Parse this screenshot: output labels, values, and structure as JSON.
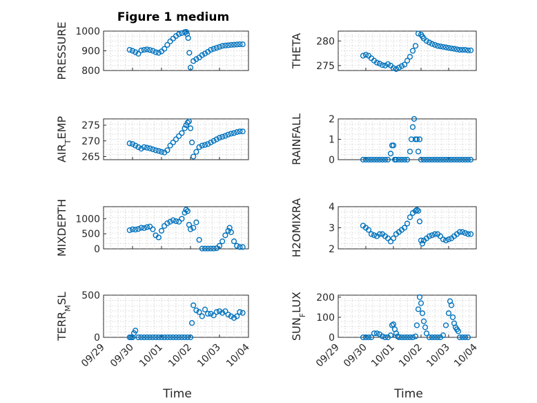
{
  "figure": {
    "title": "Figure 1 medium",
    "marker_color": "#0072bd",
    "grid": "minor-dotted"
  },
  "chart_data": [
    {
      "type": "scatter",
      "title": "Figure 1 medium",
      "ylabel": "PRESSURE",
      "ylim": [
        800,
        1000
      ],
      "yticks": [
        800,
        900,
        1000
      ],
      "yticklabels": [
        "800",
        "900",
        "1000"
      ],
      "xlim": [
        0,
        5
      ],
      "xticks": [
        0,
        1,
        2,
        3,
        4,
        5
      ],
      "xticklabels": [],
      "x": [
        0.9,
        1.0,
        1.1,
        1.2,
        1.3,
        1.4,
        1.5,
        1.6,
        1.7,
        1.8,
        1.9,
        2.0,
        2.1,
        2.2,
        2.3,
        2.4,
        2.5,
        2.6,
        2.7,
        2.8,
        2.85,
        2.88,
        2.92,
        2.96,
        3.0,
        3.1,
        3.2,
        3.3,
        3.4,
        3.5,
        3.6,
        3.7,
        3.8,
        3.9,
        4.0,
        4.1,
        4.2,
        4.3,
        4.4,
        4.5,
        4.6,
        4.7,
        4.8
      ],
      "y": [
        905,
        900,
        893,
        885,
        902,
        905,
        907,
        904,
        900,
        893,
        890,
        897,
        910,
        930,
        948,
        962,
        975,
        985,
        990,
        995,
        996,
        985,
        965,
        890,
        815,
        848,
        858,
        866,
        878,
        886,
        895,
        905,
        910,
        915,
        920,
        925,
        927,
        928,
        930,
        931,
        932,
        933,
        933
      ]
    },
    {
      "type": "scatter",
      "ylabel": "THETA",
      "ylim": [
        274,
        282
      ],
      "yticks": [
        275,
        280
      ],
      "yticklabels": [
        "275",
        "280"
      ],
      "xlim": [
        0,
        5
      ],
      "xticks": [
        0,
        1,
        2,
        3,
        4,
        5
      ],
      "xticklabels": [],
      "x": [
        0.9,
        1.0,
        1.1,
        1.2,
        1.3,
        1.4,
        1.5,
        1.6,
        1.7,
        1.8,
        1.9,
        2.0,
        2.1,
        2.2,
        2.3,
        2.4,
        2.5,
        2.6,
        2.7,
        2.8,
        2.9,
        3.0,
        3.05,
        3.1,
        3.2,
        3.3,
        3.4,
        3.5,
        3.6,
        3.7,
        3.8,
        3.9,
        4.0,
        4.1,
        4.2,
        4.3,
        4.4,
        4.5,
        4.6,
        4.7,
        4.8
      ],
      "y": [
        277.0,
        277.2,
        277.0,
        276.5,
        276.0,
        275.6,
        275.4,
        275.1,
        275.0,
        275.3,
        275.0,
        274.5,
        274.3,
        274.6,
        274.9,
        275.2,
        276.0,
        276.8,
        278.0,
        279.0,
        281.5,
        281.3,
        280.9,
        280.5,
        280.0,
        279.7,
        279.4,
        279.2,
        279.0,
        278.9,
        278.8,
        278.7,
        278.6,
        278.5,
        278.4,
        278.3,
        278.2,
        278.2,
        278.2,
        278.1,
        278.1
      ]
    },
    {
      "type": "scatter",
      "ylabel": "AIR_TEMP",
      "ylim": [
        264,
        277
      ],
      "yticks": [
        265,
        270,
        275
      ],
      "yticklabels": [
        "265",
        "270",
        "275"
      ],
      "xlim": [
        0,
        5
      ],
      "xticks": [
        0,
        1,
        2,
        3,
        4,
        5
      ],
      "xticklabels": [],
      "x": [
        0.9,
        1.0,
        1.1,
        1.2,
        1.3,
        1.4,
        1.5,
        1.6,
        1.7,
        1.8,
        1.9,
        2.0,
        2.1,
        2.2,
        2.3,
        2.4,
        2.5,
        2.6,
        2.7,
        2.8,
        2.85,
        2.9,
        2.95,
        3.0,
        3.05,
        3.1,
        3.2,
        3.3,
        3.4,
        3.5,
        3.6,
        3.7,
        3.8,
        3.9,
        4.0,
        4.1,
        4.2,
        4.3,
        4.4,
        4.5,
        4.6,
        4.7,
        4.8
      ],
      "y": [
        269.2,
        269.0,
        268.5,
        268.0,
        267.5,
        268.0,
        267.8,
        267.6,
        267.3,
        267.0,
        266.8,
        266.5,
        266.3,
        267.0,
        268.5,
        269.5,
        270.5,
        271.5,
        272.5,
        274.0,
        275.0,
        275.8,
        276.2,
        274.0,
        269.5,
        265.0,
        266.5,
        268.0,
        268.5,
        268.7,
        269.0,
        269.5,
        270.0,
        270.5,
        271.0,
        271.3,
        271.6,
        272.0,
        272.3,
        272.5,
        272.8,
        273.0,
        273.0
      ]
    },
    {
      "type": "scatter",
      "ylabel": "RAINFALL",
      "ylim": [
        0,
        2
      ],
      "yticks": [
        0,
        1,
        2
      ],
      "yticklabels": [
        "0",
        "1",
        "2"
      ],
      "xlim": [
        0,
        5
      ],
      "xticks": [
        0,
        1,
        2,
        3,
        4,
        5
      ],
      "xticklabels": [],
      "x": [
        0.9,
        1.0,
        1.1,
        1.2,
        1.3,
        1.4,
        1.5,
        1.6,
        1.7,
        1.8,
        1.9,
        1.95,
        2.0,
        2.05,
        2.1,
        2.2,
        2.3,
        2.4,
        2.5,
        2.6,
        2.65,
        2.7,
        2.75,
        2.8,
        2.85,
        2.9,
        2.95,
        3.0,
        3.1,
        3.2,
        3.3,
        3.4,
        3.5,
        3.6,
        3.7,
        3.8,
        3.9,
        4.0,
        4.1,
        4.2,
        4.3,
        4.4,
        4.5,
        4.6,
        4.7,
        4.8
      ],
      "y": [
        0,
        0,
        0,
        0,
        0,
        0,
        0,
        0,
        0,
        0,
        0.3,
        0.7,
        0.7,
        0,
        0,
        0,
        0,
        0,
        0,
        0.4,
        1.0,
        1.6,
        2.0,
        1.0,
        1.0,
        0.4,
        1.0,
        0,
        0,
        0,
        0,
        0,
        0,
        0,
        0,
        0,
        0,
        0,
        0,
        0,
        0,
        0,
        0,
        0,
        0,
        0
      ]
    },
    {
      "type": "scatter",
      "ylabel": "MIXDEPTH",
      "ylim": [
        0,
        1400
      ],
      "yticks": [
        0,
        500,
        1000
      ],
      "yticklabels": [
        "0",
        "500",
        "1000"
      ],
      "xlim": [
        0,
        5
      ],
      "xticks": [
        0,
        1,
        2,
        3,
        4,
        5
      ],
      "xticklabels": [],
      "x": [
        0.9,
        1.0,
        1.1,
        1.2,
        1.3,
        1.4,
        1.5,
        1.6,
        1.7,
        1.8,
        1.9,
        2.0,
        2.1,
        2.2,
        2.3,
        2.4,
        2.5,
        2.6,
        2.7,
        2.8,
        2.85,
        2.9,
        2.95,
        3.0,
        3.1,
        3.2,
        3.3,
        3.4,
        3.5,
        3.6,
        3.7,
        3.8,
        3.9,
        4.0,
        4.1,
        4.2,
        4.3,
        4.35,
        4.4,
        4.5,
        4.6,
        4.7,
        4.8
      ],
      "y": [
        620,
        650,
        640,
        660,
        700,
        690,
        720,
        740,
        650,
        450,
        380,
        600,
        760,
        850,
        900,
        950,
        920,
        900,
        1000,
        1200,
        1300,
        1250,
        800,
        650,
        700,
        880,
        300,
        10,
        10,
        10,
        10,
        10,
        20,
        100,
        250,
        450,
        600,
        700,
        550,
        250,
        100,
        60,
        60
      ]
    },
    {
      "type": "scatter",
      "ylabel": "H2OMIXRA",
      "ylim": [
        2,
        4
      ],
      "yticks": [
        2,
        3,
        4
      ],
      "yticklabels": [
        "2",
        "3",
        "4"
      ],
      "xlim": [
        0,
        5
      ],
      "xticks": [
        0,
        1,
        2,
        3,
        4,
        5
      ],
      "xticklabels": [],
      "x": [
        0.9,
        1.0,
        1.1,
        1.2,
        1.3,
        1.4,
        1.5,
        1.6,
        1.7,
        1.8,
        1.9,
        2.0,
        2.1,
        2.2,
        2.3,
        2.4,
        2.5,
        2.6,
        2.7,
        2.8,
        2.85,
        2.9,
        2.95,
        3.0,
        3.05,
        3.1,
        3.2,
        3.3,
        3.4,
        3.5,
        3.6,
        3.7,
        3.8,
        3.9,
        4.0,
        4.1,
        4.2,
        4.3,
        4.4,
        4.5,
        4.6,
        4.7,
        4.8
      ],
      "y": [
        3.1,
        3.0,
        2.9,
        2.7,
        2.65,
        2.6,
        2.7,
        2.7,
        2.6,
        2.5,
        2.35,
        2.5,
        2.7,
        2.8,
        2.9,
        3.0,
        3.2,
        3.5,
        3.7,
        3.8,
        3.85,
        3.8,
        3.3,
        2.4,
        2.25,
        2.4,
        2.5,
        2.6,
        2.65,
        2.7,
        2.7,
        2.6,
        2.45,
        2.4,
        2.45,
        2.5,
        2.6,
        2.7,
        2.8,
        2.8,
        2.75,
        2.7,
        2.7
      ]
    },
    {
      "type": "scatter",
      "ylabel": "TERR_MSL",
      "ylim": [
        0,
        500
      ],
      "yticks": [
        0,
        500
      ],
      "yticklabels": [
        "0",
        "500"
      ],
      "xlim": [
        0,
        5
      ],
      "xticks": [
        0,
        1,
        2,
        3,
        4,
        5
      ],
      "xticklabels": [
        "09/29",
        "09/30",
        "10/01",
        "10/02",
        "10/03",
        "10/04"
      ],
      "xlabel": "Time",
      "x": [
        0.9,
        0.95,
        1.0,
        1.05,
        1.1,
        1.2,
        1.3,
        1.4,
        1.5,
        1.6,
        1.7,
        1.8,
        1.9,
        2.0,
        2.1,
        2.2,
        2.3,
        2.4,
        2.5,
        2.6,
        2.7,
        2.8,
        2.9,
        3.0,
        3.05,
        3.1,
        3.2,
        3.3,
        3.4,
        3.5,
        3.6,
        3.7,
        3.8,
        3.9,
        4.0,
        4.1,
        4.2,
        4.3,
        4.4,
        4.5,
        4.6,
        4.7,
        4.8
      ],
      "y": [
        0,
        0,
        0,
        50,
        80,
        0,
        0,
        0,
        0,
        0,
        0,
        0,
        0,
        0,
        0,
        0,
        0,
        0,
        0,
        0,
        0,
        0,
        0,
        0,
        170,
        380,
        320,
        300,
        250,
        330,
        280,
        280,
        260,
        300,
        310,
        290,
        310,
        270,
        250,
        230,
        250,
        300,
        290
      ]
    },
    {
      "type": "scatter",
      "ylabel": "SUN_FLUX",
      "ylim": [
        0,
        210
      ],
      "yticks": [
        0,
        100,
        200
      ],
      "yticklabels": [
        "0",
        "100",
        "200"
      ],
      "xlim": [
        0,
        5
      ],
      "xticks": [
        0,
        1,
        2,
        3,
        4,
        5
      ],
      "xticklabels": [
        "09/29",
        "09/30",
        "10/01",
        "10/02",
        "10/03",
        "10/04"
      ],
      "xlabel": "Time",
      "x": [
        0.9,
        1.0,
        1.1,
        1.2,
        1.3,
        1.4,
        1.5,
        1.6,
        1.7,
        1.8,
        1.9,
        1.95,
        2.0,
        2.05,
        2.1,
        2.15,
        2.2,
        2.3,
        2.4,
        2.5,
        2.6,
        2.7,
        2.8,
        2.85,
        2.9,
        2.95,
        3.0,
        3.05,
        3.1,
        3.15,
        3.2,
        3.3,
        3.4,
        3.5,
        3.6,
        3.7,
        3.8,
        3.9,
        4.0,
        4.05,
        4.1,
        4.15,
        4.2,
        4.25,
        4.3,
        4.35,
        4.4,
        4.5,
        4.6,
        4.7
      ],
      "y": [
        0,
        0,
        0,
        0,
        20,
        20,
        15,
        5,
        0,
        0,
        10,
        60,
        65,
        40,
        20,
        5,
        0,
        0,
        0,
        0,
        0,
        0,
        5,
        60,
        140,
        200,
        170,
        120,
        80,
        50,
        20,
        0,
        0,
        0,
        0,
        0,
        10,
        60,
        120,
        180,
        160,
        100,
        70,
        50,
        40,
        30,
        0,
        0,
        0,
        0
      ]
    }
  ]
}
